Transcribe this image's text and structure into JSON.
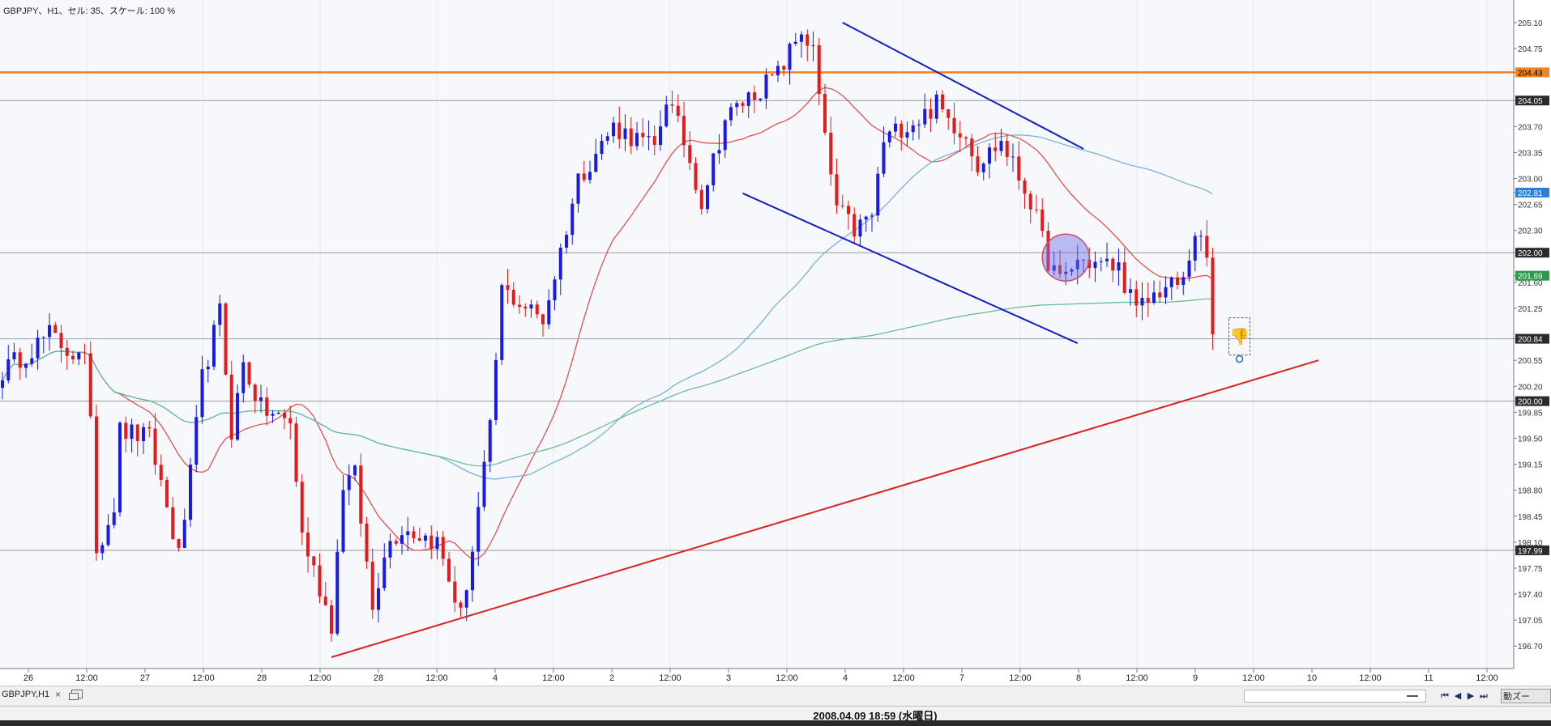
{
  "header": {
    "title": "GBPJPY、H1、セル: 35、スケール: 100 %"
  },
  "chart_data": {
    "type": "candlestick",
    "symbol": "GBPJPY",
    "timeframe": "H1",
    "ylim": [
      196.55,
      205.35
    ],
    "y_ticks": [
      "205.10",
      "204.75",
      "204.43",
      "204.05",
      "203.70",
      "203.35",
      "203.00",
      "202.81",
      "202.65",
      "202.30",
      "202.00",
      "201.69",
      "201.60",
      "201.25",
      "200.84",
      "200.55",
      "200.20",
      "200.00",
      "199.85",
      "199.50",
      "199.15",
      "198.80",
      "198.45",
      "198.10",
      "197.99",
      "197.75",
      "197.40",
      "197.05",
      "196.70"
    ],
    "x_labels": [
      "26",
      "12:00",
      "27",
      "12:00",
      "28",
      "12:00",
      "28",
      "12:00",
      "4",
      "12:00",
      "2",
      "12:00",
      "3",
      "12:00",
      "4",
      "12:00",
      "7",
      "12:00",
      "8",
      "12:00",
      "9",
      "12:00",
      "10",
      "12:00",
      "11",
      "12:00"
    ],
    "levels": [
      {
        "price": 204.43,
        "label": "204.43",
        "color": "#f58220",
        "badge": "#f58220",
        "text": "#000000"
      },
      {
        "price": 204.05,
        "label": "204.05",
        "color": "#9a9a9a",
        "badge": "#2b2b2b",
        "text": "#ffffff"
      },
      {
        "price": 202.0,
        "label": "202.00",
        "color": "#9a9a9a",
        "badge": "#2b2b2b",
        "text": "#ffffff"
      },
      {
        "price": 200.84,
        "label": "200.84",
        "color": "#8fa0b8",
        "badge": "#2b2b2b",
        "text": "#ffffff"
      },
      {
        "price": 200.0,
        "label": "200.00",
        "color": "#9a9a9a",
        "badge": "#2b2b2b",
        "text": "#ffffff"
      },
      {
        "price": 197.99,
        "label": "197.99",
        "color": "#9a9a9a",
        "badge": "#2b2b2b",
        "text": "#ffffff"
      }
    ],
    "markers": [
      {
        "price": 202.81,
        "label": "202.81",
        "badge": "#2c7fd1",
        "text": "#ffffff"
      },
      {
        "price": 201.69,
        "label": "201.69",
        "badge": "#2e9a4a",
        "text": "#ffffff"
      }
    ],
    "bar_count": 224,
    "key_prices": [
      [
        0,
        200.4
      ],
      [
        8,
        200.9
      ],
      [
        14,
        200.5
      ],
      [
        15,
        199.9
      ],
      [
        16,
        198.0
      ],
      [
        19,
        198.6
      ],
      [
        20,
        199.6
      ],
      [
        25,
        199.5
      ],
      [
        27,
        198.9
      ],
      [
        30,
        197.9
      ],
      [
        32,
        199.0
      ],
      [
        34,
        200.3
      ],
      [
        37,
        201.2
      ],
      [
        39,
        199.6
      ],
      [
        41,
        200.5
      ],
      [
        44,
        199.9
      ],
      [
        49,
        199.7
      ],
      [
        51,
        198.2
      ],
      [
        56,
        197.0
      ],
      [
        58,
        198.9
      ],
      [
        60,
        199.0
      ],
      [
        63,
        197.2
      ],
      [
        65,
        198.0
      ],
      [
        68,
        198.3
      ],
      [
        74,
        198.1
      ],
      [
        78,
        197.1
      ],
      [
        80,
        198.0
      ],
      [
        83,
        199.6
      ],
      [
        85,
        201.5
      ],
      [
        92,
        201.1
      ],
      [
        94,
        201.7
      ],
      [
        98,
        203.0
      ],
      [
        104,
        203.7
      ],
      [
        111,
        203.4
      ],
      [
        113,
        204.1
      ],
      [
        116,
        203.5
      ],
      [
        119,
        202.7
      ],
      [
        123,
        203.8
      ],
      [
        127,
        204.1
      ],
      [
        132,
        204.4
      ],
      [
        136,
        205.0
      ],
      [
        138,
        204.7
      ],
      [
        140,
        203.5
      ],
      [
        142,
        202.6
      ],
      [
        145,
        202.3
      ],
      [
        148,
        202.5
      ],
      [
        150,
        203.5
      ],
      [
        153,
        203.7
      ],
      [
        156,
        203.8
      ],
      [
        159,
        204.0
      ],
      [
        161,
        203.8
      ],
      [
        164,
        203.6
      ],
      [
        166,
        203.2
      ],
      [
        170,
        203.5
      ],
      [
        175,
        202.7
      ],
      [
        178,
        201.9
      ],
      [
        180,
        201.6
      ],
      [
        183,
        201.9
      ],
      [
        190,
        201.8
      ],
      [
        193,
        201.2
      ],
      [
        197,
        201.5
      ],
      [
        201,
        201.6
      ],
      [
        203,
        202.3
      ],
      [
        205,
        201.9
      ],
      [
        206,
        200.9
      ]
    ],
    "moving_averages": [
      {
        "name": "ma-fast",
        "color": "#e84545",
        "period": 20
      },
      {
        "name": "ma-mid",
        "color": "#6aaee0",
        "period": 75
      },
      {
        "name": "ma-slow",
        "color": "#5fba8e",
        "period": 200
      }
    ],
    "trend_lines": [
      {
        "name": "upper-channel-line",
        "color": "#1020c8",
        "points": [
          [
            143,
            205.1
          ],
          [
            184,
            203.4
          ]
        ]
      },
      {
        "name": "lower-channel-line",
        "color": "#1020c8",
        "points": [
          [
            126,
            202.8
          ],
          [
            183,
            200.78
          ]
        ]
      },
      {
        "name": "support-trend-line",
        "color": "#e02020",
        "points": [
          [
            56,
            196.55
          ],
          [
            224,
            200.55
          ]
        ]
      }
    ]
  }
}
